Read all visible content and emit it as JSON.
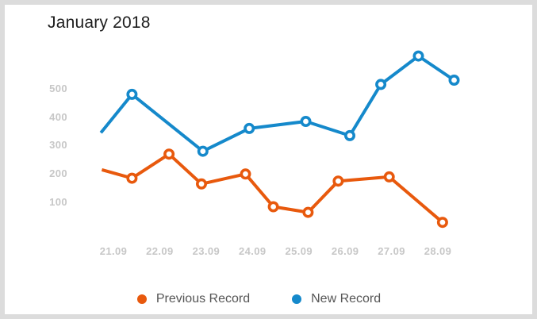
{
  "chart_data": {
    "type": "line",
    "title": "January 2018",
    "x_labels": [
      "21.09",
      "22.09",
      "23.09",
      "24.09",
      "25.09",
      "26.09",
      "27.09",
      "28.09"
    ],
    "y_ticks": [
      100,
      200,
      300,
      400,
      500
    ],
    "ylim": [
      0,
      640
    ],
    "grid": false,
    "axes_lines": false,
    "legend_position": "bottom",
    "x_axis_note": "x values are in category units where 0 = 21.09 and 7 = 28.09; lines start slightly before the first tick without a marker",
    "series": [
      {
        "name": "Previous Record",
        "color": "#E8590D",
        "points": [
          {
            "x": -0.25,
            "v": 215,
            "marker": false
          },
          {
            "x": 0.4,
            "v": 185,
            "marker": true
          },
          {
            "x": 1.2,
            "v": 270,
            "marker": true
          },
          {
            "x": 1.9,
            "v": 165,
            "marker": true
          },
          {
            "x": 2.85,
            "v": 200,
            "marker": true
          },
          {
            "x": 3.45,
            "v": 85,
            "marker": true
          },
          {
            "x": 4.2,
            "v": 65,
            "marker": true
          },
          {
            "x": 4.85,
            "v": 175,
            "marker": true
          },
          {
            "x": 5.95,
            "v": 190,
            "marker": true
          },
          {
            "x": 7.1,
            "v": 30,
            "marker": true
          }
        ]
      },
      {
        "name": "New Record",
        "color": "#1589CB",
        "points": [
          {
            "x": -0.27,
            "v": 345,
            "marker": false
          },
          {
            "x": 0.4,
            "v": 480,
            "marker": true
          },
          {
            "x": 1.93,
            "v": 280,
            "marker": true
          },
          {
            "x": 2.93,
            "v": 360,
            "marker": true
          },
          {
            "x": 4.15,
            "v": 385,
            "marker": true
          },
          {
            "x": 5.1,
            "v": 335,
            "marker": true
          },
          {
            "x": 5.77,
            "v": 515,
            "marker": true
          },
          {
            "x": 6.58,
            "v": 615,
            "marker": true
          },
          {
            "x": 7.35,
            "v": 530,
            "marker": true
          }
        ]
      }
    ],
    "colors": {
      "frame_border": "#dcdcdc",
      "background": "#ffffff",
      "title_text": "#1d1d1d",
      "axis_labels": "#c7c7c7",
      "legend_text": "#555555"
    }
  }
}
